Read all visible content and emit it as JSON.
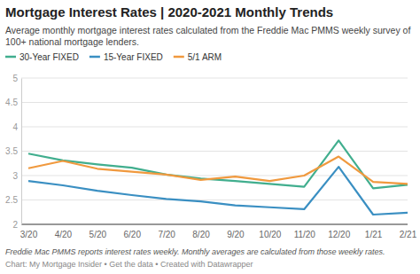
{
  "chart_data": {
    "type": "line",
    "title": "Mortgage Interest Rates | 2020-2021 Monthly Trends",
    "subtitle": "Average monthly mortgage interest rates calculated from the Freddie Mac PMMS weekly survey of 100+ national mortgage lenders.",
    "annotations": [
      "Freddie Mac PMMS reports interest rates weekly. Monthly averages are calculated from those weekly rates.",
      "Chart: My Mortgage Insider • Get the data • Created with Datawrapper"
    ],
    "categories": [
      "3/20",
      "4/20",
      "5/20",
      "6/20",
      "7/20",
      "8/20",
      "9/20",
      "10/20",
      "11/20",
      "12/20",
      "1/21",
      "2/21"
    ],
    "series": [
      {
        "name": "30-Year FIXED",
        "color": "#41ae8e",
        "values": [
          3.45,
          3.31,
          3.23,
          3.16,
          3.02,
          2.94,
          2.89,
          2.83,
          2.77,
          3.72,
          2.74,
          2.81
        ]
      },
      {
        "name": "15-Year FIXED",
        "color": "#3a8fc2",
        "values": [
          2.89,
          2.8,
          2.69,
          2.6,
          2.52,
          2.47,
          2.39,
          2.35,
          2.31,
          3.18,
          2.2,
          2.24
        ]
      },
      {
        "name": "5/1 ARM",
        "color": "#f0993e",
        "values": [
          3.15,
          3.3,
          3.14,
          3.08,
          3.02,
          2.91,
          2.98,
          2.89,
          3.0,
          3.39,
          2.87,
          2.83
        ]
      }
    ],
    "ylim": [
      2,
      5
    ],
    "yticks": [
      2,
      2.5,
      3,
      3.5,
      4,
      4.5,
      5
    ],
    "grid": true,
    "legend": "top"
  }
}
